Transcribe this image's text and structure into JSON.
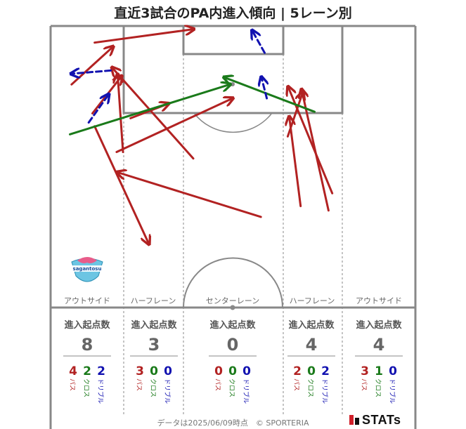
{
  "title": "直近3試合のPA内進入傾向 | 5レーン別",
  "footer": "データは2025/06/09時点　© SPORTERIA",
  "brand": "STATs",
  "team_logo": {
    "text": "sagantosu"
  },
  "colors": {
    "pass": "#b22222",
    "cross": "#1a7a1a",
    "dribble": "#1212b0",
    "pitch_line": "#888888"
  },
  "lanes": [
    {
      "name": "アウトサイド",
      "head": "進入起点数",
      "count": "8",
      "pass": "4",
      "cross": "2",
      "dribble": "2"
    },
    {
      "name": "ハーフレーン",
      "head": "進入起点数",
      "count": "3",
      "pass": "3",
      "cross": "0",
      "dribble": "0"
    },
    {
      "name": "センターレーン",
      "head": "進入起点数",
      "count": "0",
      "pass": "0",
      "cross": "0",
      "dribble": "0"
    },
    {
      "name": "ハーフレーン",
      "head": "進入起点数",
      "count": "4",
      "pass": "2",
      "cross": "0",
      "dribble": "2"
    },
    {
      "name": "アウトサイド",
      "head": "進入起点数",
      "count": "4",
      "pass": "3",
      "cross": "1",
      "dribble": "0"
    }
  ],
  "stat_labels": {
    "pass": "パス",
    "cross": "クロス",
    "dribble": "ドリブル"
  },
  "chart_data": {
    "type": "scatter",
    "title": "直近3試合のPA内進入傾向 | 5レーン別",
    "description_units": "pitch coordinates: x across width 0-68 (left to right), y distance from goal line 0-52.5",
    "arrows": [
      {
        "kind": "pass",
        "from": [
          8.2,
          18.7
        ],
        "to": [
          18.3,
          40.6
        ]
      },
      {
        "kind": "pass",
        "from": [
          8.2,
          3.1
        ],
        "to": [
          26.6,
          0.6
        ]
      },
      {
        "kind": "pass",
        "from": [
          7.8,
          16.3
        ],
        "to": [
          13.2,
          9.4
        ]
      },
      {
        "kind": "pass",
        "from": [
          3.9,
          10.9
        ],
        "to": [
          11.6,
          3.9
        ]
      },
      {
        "kind": "pass",
        "from": [
          12.3,
          23.5
        ],
        "to": [
          33.9,
          13.5
        ]
      },
      {
        "kind": "pass",
        "from": [
          13.5,
          23.5
        ],
        "to": [
          12.5,
          9.1
        ]
      },
      {
        "kind": "pass",
        "from": [
          14.9,
          17.2
        ],
        "to": [
          21.9,
          14.5
        ]
      },
      {
        "kind": "pass",
        "from": [
          26.6,
          24.7
        ],
        "to": [
          11.5,
          7.8
        ]
      },
      {
        "kind": "pass",
        "from": [
          51.8,
          34.4
        ],
        "to": [
          46.8,
          11.9
        ]
      },
      {
        "kind": "pass",
        "from": [
          44.2,
          20.6
        ],
        "to": [
          47.0,
          12.4
        ]
      },
      {
        "kind": "pass",
        "from": [
          46.6,
          33.6
        ],
        "to": [
          44.5,
          17.0
        ]
      },
      {
        "kind": "pass",
        "from": [
          52.5,
          31.2
        ],
        "to": [
          44.3,
          11.4
        ]
      },
      {
        "kind": "pass",
        "from": [
          39.2,
          35.6
        ],
        "to": [
          12.5,
          27.3
        ]
      },
      {
        "kind": "cross",
        "from": [
          49.2,
          16.0
        ],
        "to": [
          32.4,
          9.6
        ]
      },
      {
        "kind": "cross",
        "from": [
          3.6,
          20.2
        ],
        "to": [
          33.4,
          10.9
        ]
      },
      {
        "kind": "dribble",
        "from": [
          11.2,
          8.3
        ],
        "to": [
          3.9,
          8.9
        ]
      },
      {
        "kind": "dribble",
        "from": [
          7.1,
          18.0
        ],
        "to": [
          10.8,
          12.8
        ]
      },
      {
        "kind": "dribble",
        "from": [
          39.9,
          5.0
        ],
        "to": [
          37.6,
          0.9
        ]
      },
      {
        "kind": "dribble",
        "from": [
          40.3,
          13.5
        ],
        "to": [
          39.3,
          9.6
        ]
      }
    ]
  }
}
